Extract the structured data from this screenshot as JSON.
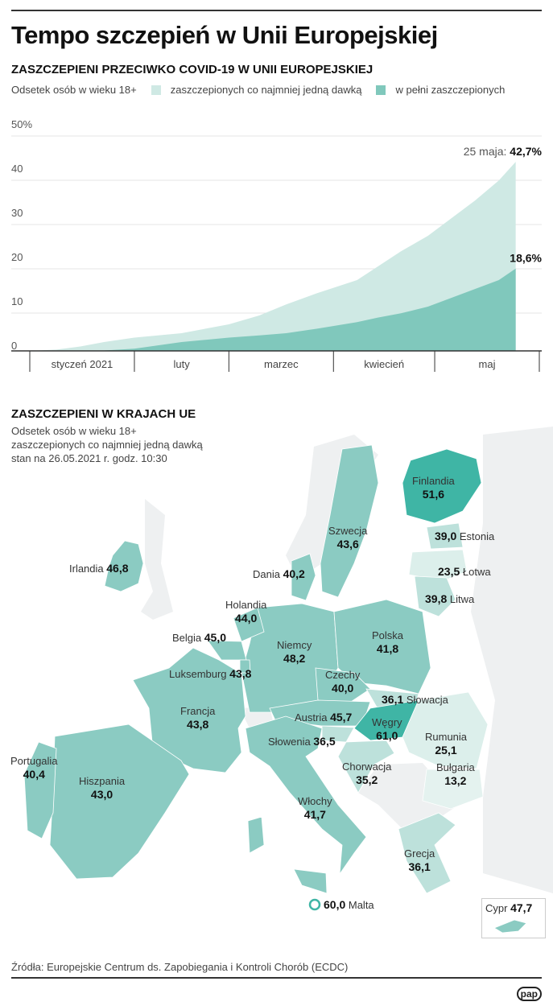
{
  "title": "Tempo szczepień w Unii Europejskiej",
  "section1": {
    "heading": "ZASZCZEPIENI PRZECIWKO COVID-19 W UNII EUROPEJSKIEJ",
    "subtitle": "Odsetek osób w wieku 18+"
  },
  "chart_data": {
    "type": "area",
    "title": "ZASZCZEPIENI PRZECIWKO COVID-19 W UNII EUROPEJSKIEJ",
    "ylabel": "Odsetek osób w wieku 18+",
    "ylim": [
      0,
      50
    ],
    "y_ticks": [
      "0",
      "10",
      "20",
      "30",
      "40",
      "50%"
    ],
    "x_unit": "day of 2021",
    "xlim": [
      0,
      151
    ],
    "x_months": [
      "styczeń 2021",
      "luty",
      "marzec",
      "kwiecień",
      "maj"
    ],
    "grid": true,
    "legend_position": "top",
    "colors": {
      "first": "#cfe9e4",
      "full": "#80c8bc"
    },
    "series": [
      {
        "name": "zaszczepionych co najmniej jedną dawką",
        "x": [
          0,
          8,
          15,
          22,
          31,
          45,
          59,
          68,
          76,
          85,
          97,
          103,
          110,
          118,
          125,
          132,
          139,
          144
        ],
        "values": [
          0,
          0.3,
          1,
          2,
          3,
          4,
          6,
          8,
          10.5,
          13,
          16,
          19,
          22.5,
          26,
          30,
          34,
          38.5,
          42.7
        ]
      },
      {
        "name": "w pełni zaszczepionych",
        "x": [
          0,
          15,
          22,
          31,
          45,
          59,
          68,
          76,
          85,
          97,
          103,
          110,
          118,
          125,
          132,
          139,
          144
        ],
        "values": [
          0,
          0,
          0.1,
          0.5,
          2,
          3,
          3.5,
          4,
          5,
          6.5,
          7.5,
          8.5,
          10,
          12,
          14,
          16,
          18.6
        ]
      }
    ],
    "annotations": {
      "first_date": "25 maja:",
      "first_value": "42,7%",
      "full_value": "18,6%"
    }
  },
  "section2": {
    "heading": "ZASZCZEPIENI W KRAJACH UE",
    "lines": [
      "Odsetek osób w wieku 18+",
      "zaszczepionych co najmniej jedną dawką",
      "stan na 26.05.2021 r. godz. 10:30"
    ]
  },
  "countries": {
    "finlandia": {
      "name": "Finlandia",
      "value": "51,6"
    },
    "szwecja": {
      "name": "Szwecja",
      "value": "43,6"
    },
    "estonia": {
      "name": "Estonia",
      "value": "39,0"
    },
    "lotwa": {
      "name": "Łotwa",
      "value": "23,5"
    },
    "litwa": {
      "name": "Litwa",
      "value": "39,8"
    },
    "irlandia": {
      "name": "Irlandia",
      "value": "46,8"
    },
    "dania": {
      "name": "Dania",
      "value": "40,2"
    },
    "holandia": {
      "name": "Holandia",
      "value": "44,0"
    },
    "belgia": {
      "name": "Belgia",
      "value": "45,0"
    },
    "luksemburg": {
      "name": "Luksemburg",
      "value": "43,8"
    },
    "niemcy": {
      "name": "Niemcy",
      "value": "48,2"
    },
    "polska": {
      "name": "Polska",
      "value": "41,8"
    },
    "czechy": {
      "name": "Czechy",
      "value": "40,0"
    },
    "slowacja": {
      "name": "Słowacja",
      "value": "36,1"
    },
    "austria": {
      "name": "Austria",
      "value": "45,7"
    },
    "wegry": {
      "name": "Węgry",
      "value": "61,0"
    },
    "slowenia": {
      "name": "Słowenia",
      "value": "36,5"
    },
    "francja": {
      "name": "Francja",
      "value": "43,8"
    },
    "rumunia": {
      "name": "Rumunia",
      "value": "25,1"
    },
    "portugalia": {
      "name": "Portugalia",
      "value": "40,4"
    },
    "hiszpania": {
      "name": "Hiszpania",
      "value": "43,0"
    },
    "chorwacja": {
      "name": "Chorwacja",
      "value": "35,2"
    },
    "bulgaria": {
      "name": "Bułgaria",
      "value": "13,2"
    },
    "wlochy": {
      "name": "Włochy",
      "value": "41,7"
    },
    "grecja": {
      "name": "Grecja",
      "value": "36,1"
    },
    "malta": {
      "name": "Malta",
      "value": "60,0"
    },
    "cypr": {
      "name": "Cypr",
      "value": "47,7"
    }
  },
  "source": "Źródła: Europejskie Centrum ds. Zapobiegania i Kontroli Chorób (ECDC)",
  "logo": "pap"
}
